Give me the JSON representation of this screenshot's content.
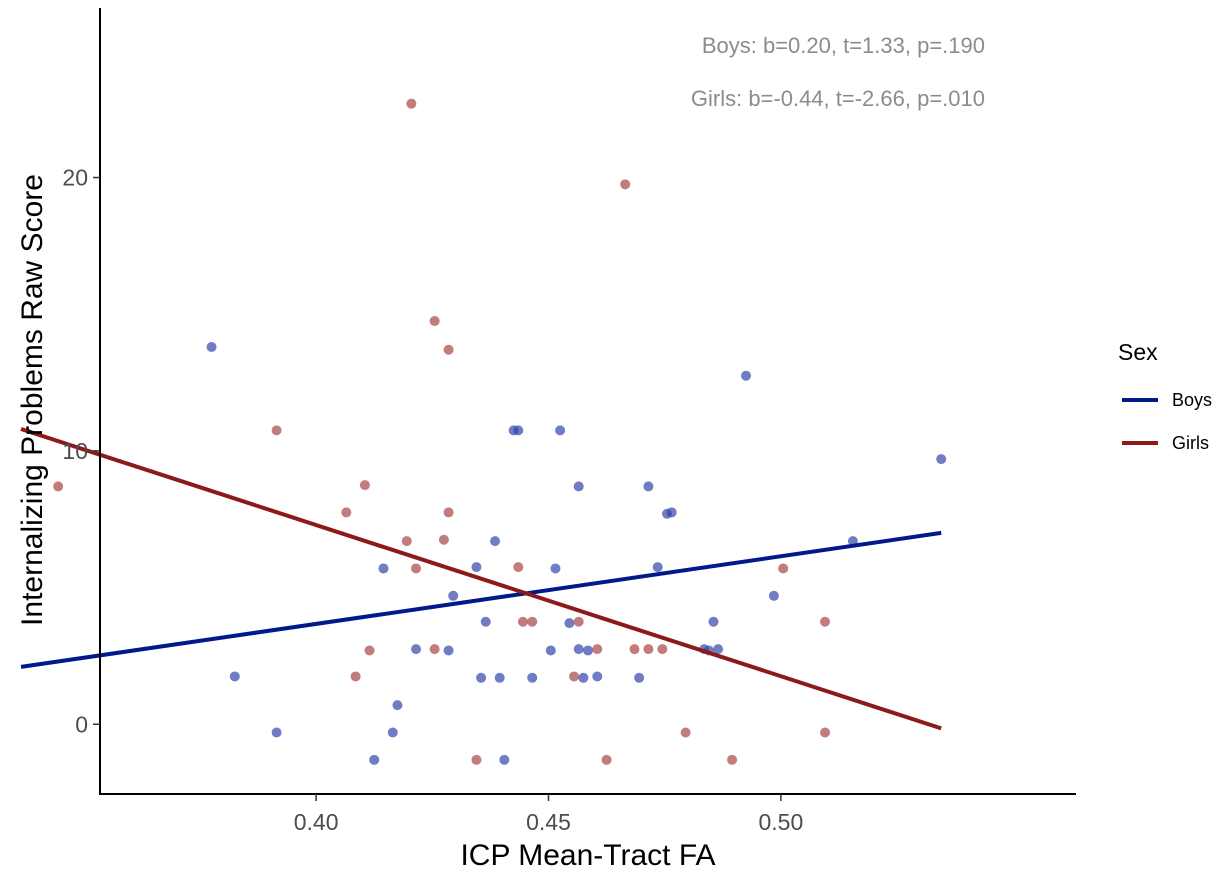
{
  "chart_data": {
    "type": "scatter",
    "xlabel": "ICP Mean-Tract FA",
    "ylabel": "Internalizing Problems Raw Score",
    "xlim": [
      0.3535,
      0.5635
    ],
    "ylim": [
      -2.55,
      26.2
    ],
    "x_ticks": [
      {
        "value": 0.4,
        "label": "0.40"
      },
      {
        "value": 0.45,
        "label": "0.45"
      },
      {
        "value": 0.5,
        "label": "0.50"
      }
    ],
    "y_ticks": [
      {
        "value": 0,
        "label": "0"
      },
      {
        "value": 10,
        "label": "10"
      },
      {
        "value": 20,
        "label": "20"
      }
    ],
    "grid": false,
    "legend": {
      "title": "Sex",
      "position": "right",
      "entries": [
        {
          "label": "Boys",
          "color": "#001a8c"
        },
        {
          "label": "Girls",
          "color": "#8c1a1a"
        }
      ]
    },
    "annotations": [
      "Boys: b=0.20,  t=1.33, p=.190",
      "Girls: b=-0.44, t=-2.66, p=.010"
    ],
    "series": [
      {
        "name": "Boys",
        "color": "#001a8c",
        "point_color": "#3344aa",
        "fit_line": {
          "x": [
            0.3365,
            0.5345
          ],
          "y": [
            2.1,
            7.0
          ]
        },
        "points": [
          {
            "x": 0.3775,
            "y": 13.8
          },
          {
            "x": 0.3825,
            "y": 1.75
          },
          {
            "x": 0.3915,
            "y": -0.3
          },
          {
            "x": 0.4125,
            "y": -1.3
          },
          {
            "x": 0.4145,
            "y": 5.7
          },
          {
            "x": 0.4165,
            "y": -0.3
          },
          {
            "x": 0.4175,
            "y": 0.7
          },
          {
            "x": 0.4215,
            "y": 2.75
          },
          {
            "x": 0.4285,
            "y": 2.7
          },
          {
            "x": 0.4295,
            "y": 4.7
          },
          {
            "x": 0.4345,
            "y": 5.75
          },
          {
            "x": 0.4355,
            "y": 1.7
          },
          {
            "x": 0.4365,
            "y": 3.75
          },
          {
            "x": 0.4385,
            "y": 6.7
          },
          {
            "x": 0.4395,
            "y": 1.7
          },
          {
            "x": 0.4405,
            "y": -1.3
          },
          {
            "x": 0.4425,
            "y": 10.75
          },
          {
            "x": 0.4435,
            "y": 10.75
          },
          {
            "x": 0.4465,
            "y": 1.7
          },
          {
            "x": 0.4505,
            "y": 2.7
          },
          {
            "x": 0.4515,
            "y": 5.7
          },
          {
            "x": 0.4525,
            "y": 10.75
          },
          {
            "x": 0.4545,
            "y": 3.7
          },
          {
            "x": 0.4565,
            "y": 8.7
          },
          {
            "x": 0.4565,
            "y": 2.75
          },
          {
            "x": 0.4575,
            "y": 1.7
          },
          {
            "x": 0.4585,
            "y": 2.7
          },
          {
            "x": 0.4605,
            "y": 1.75
          },
          {
            "x": 0.4695,
            "y": 1.7
          },
          {
            "x": 0.4715,
            "y": 8.7
          },
          {
            "x": 0.4735,
            "y": 5.75
          },
          {
            "x": 0.4755,
            "y": 7.7
          },
          {
            "x": 0.4765,
            "y": 7.75
          },
          {
            "x": 0.4835,
            "y": 2.75
          },
          {
            "x": 0.4845,
            "y": 2.7
          },
          {
            "x": 0.4855,
            "y": 3.75
          },
          {
            "x": 0.4865,
            "y": 2.75
          },
          {
            "x": 0.4925,
            "y": 12.75
          },
          {
            "x": 0.4985,
            "y": 4.7
          },
          {
            "x": 0.5155,
            "y": 6.7
          },
          {
            "x": 0.5345,
            "y": 9.7
          }
        ]
      },
      {
        "name": "Girls",
        "color": "#8c1a1a",
        "point_color": "#aa4444",
        "fit_line": {
          "x": [
            0.3365,
            0.5345
          ],
          "y": [
            10.8,
            -0.15
          ]
        },
        "points": [
          {
            "x": 0.3445,
            "y": 8.7
          },
          {
            "x": 0.3915,
            "y": 10.75
          },
          {
            "x": 0.4065,
            "y": 7.75
          },
          {
            "x": 0.4085,
            "y": 1.75
          },
          {
            "x": 0.4105,
            "y": 8.75
          },
          {
            "x": 0.4115,
            "y": 2.7
          },
          {
            "x": 0.4195,
            "y": 6.7
          },
          {
            "x": 0.4205,
            "y": 22.7
          },
          {
            "x": 0.4215,
            "y": 5.7
          },
          {
            "x": 0.4255,
            "y": 14.75
          },
          {
            "x": 0.4255,
            "y": 2.75
          },
          {
            "x": 0.4275,
            "y": 6.75
          },
          {
            "x": 0.4285,
            "y": 13.7
          },
          {
            "x": 0.4285,
            "y": 7.75
          },
          {
            "x": 0.4345,
            "y": -1.3
          },
          {
            "x": 0.4435,
            "y": 5.75
          },
          {
            "x": 0.4445,
            "y": 3.75
          },
          {
            "x": 0.4465,
            "y": 3.75
          },
          {
            "x": 0.4555,
            "y": 1.75
          },
          {
            "x": 0.4565,
            "y": 3.75
          },
          {
            "x": 0.4605,
            "y": 2.75
          },
          {
            "x": 0.4625,
            "y": -1.3
          },
          {
            "x": 0.4665,
            "y": 19.75
          },
          {
            "x": 0.4685,
            "y": 2.75
          },
          {
            "x": 0.4715,
            "y": 2.75
          },
          {
            "x": 0.4745,
            "y": 2.75
          },
          {
            "x": 0.4795,
            "y": -0.3
          },
          {
            "x": 0.4895,
            "y": -1.3
          },
          {
            "x": 0.5005,
            "y": 5.7
          },
          {
            "x": 0.5095,
            "y": -0.3
          },
          {
            "x": 0.5095,
            "y": 3.75
          }
        ]
      }
    ]
  }
}
